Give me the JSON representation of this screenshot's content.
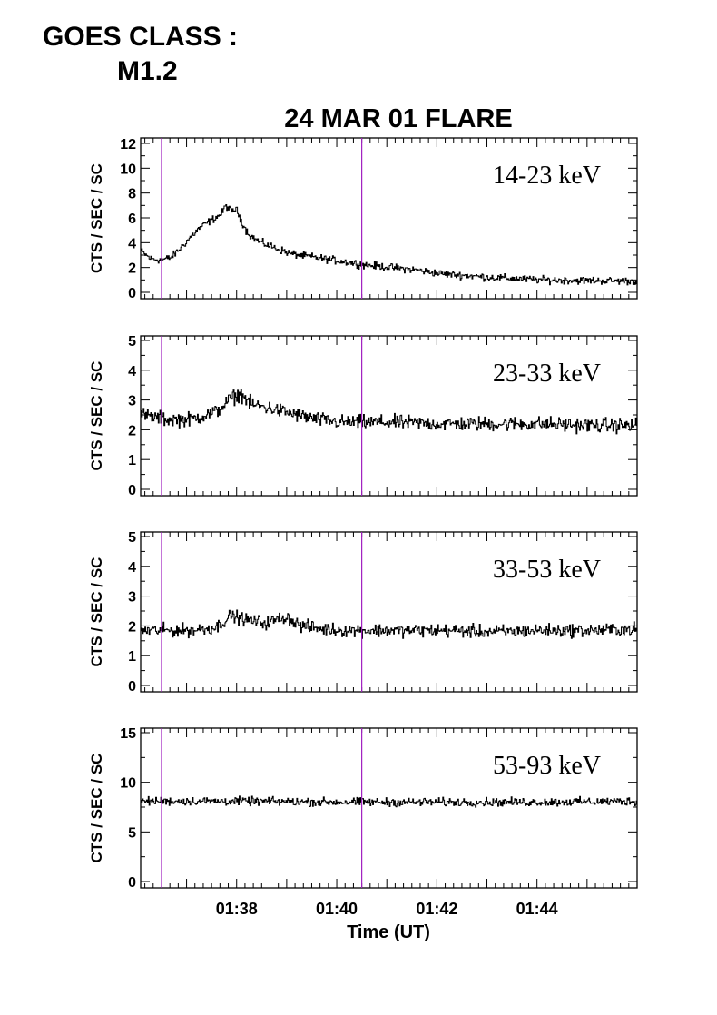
{
  "header": {
    "goes_label": "GOES CLASS :",
    "goes_value": "M1.2"
  },
  "chart_data": {
    "type": "line",
    "title": "24 MAR 01 FLARE",
    "xlabel": "Time (UT)",
    "x_ticks": [
      "01:38",
      "01:40",
      "01:42",
      "01:44"
    ],
    "x_range": [
      "01:36:05",
      "01:46:00"
    ],
    "vertical_markers": [
      "01:36:30",
      "01:40:30"
    ],
    "marker_color": "#a020c0",
    "line_color": "#000000",
    "panels": [
      {
        "band": "14-23 keV",
        "ylabel": "CTS / SEC / SC",
        "ylim": [
          0,
          12
        ],
        "y_ticks": [
          "0",
          "2",
          "4",
          "6",
          "8",
          "10",
          "12"
        ],
        "series": [
          {
            "x_min": [
              0.0,
              0.2,
              0.4,
              0.6,
              0.8,
              1.0,
              1.2,
              1.4,
              1.6,
              1.7,
              1.8,
              1.9,
              2.0,
              2.1,
              2.2,
              2.4,
              2.6,
              2.8,
              3.0,
              3.5,
              4.0,
              4.5,
              5.0,
              5.5,
              6.0,
              7.0,
              8.0,
              9.0,
              10.0
            ],
            "y": [
              3.3,
              2.7,
              2.6,
              2.8,
              3.6,
              4.5,
              5.3,
              5.8,
              6.3,
              7.0,
              6.5,
              6.7,
              5.8,
              5.0,
              4.5,
              4.0,
              3.7,
              3.4,
              3.1,
              2.8,
              2.5,
              2.2,
              2.0,
              1.8,
              1.5,
              1.2,
              1.0,
              0.95,
              0.9
            ],
            "noise": 0.25
          }
        ]
      },
      {
        "band": "23-33 keV",
        "ylabel": "CTS / SEC / SC",
        "ylim": [
          0,
          5
        ],
        "y_ticks": [
          "0",
          "1",
          "2",
          "3",
          "4",
          "5"
        ],
        "series": [
          {
            "x_min": [
              0.0,
              0.5,
              1.0,
              1.5,
              1.8,
              2.0,
              2.2,
              2.5,
              3.0,
              3.5,
              4.0,
              5.0,
              6.0,
              7.0,
              8.0,
              9.0,
              10.0
            ],
            "y": [
              2.5,
              2.35,
              2.35,
              2.6,
              3.05,
              3.2,
              2.85,
              2.75,
              2.55,
              2.35,
              2.25,
              2.25,
              2.2,
              2.2,
              2.2,
              2.15,
              2.15
            ],
            "noise": 0.2
          }
        ]
      },
      {
        "band": "33-53 keV",
        "ylabel": "CTS / SEC / SC",
        "ylim": [
          0,
          5
        ],
        "y_ticks": [
          "0",
          "1",
          "2",
          "3",
          "4",
          "5"
        ],
        "series": [
          {
            "x_min": [
              0.0,
              1.0,
              1.5,
              1.8,
              2.1,
              2.5,
              2.9,
              3.2,
              3.6,
              4.0,
              5.0,
              6.0,
              7.0,
              8.0,
              9.0,
              10.0
            ],
            "y": [
              1.85,
              1.85,
              1.95,
              2.35,
              2.2,
              2.1,
              2.3,
              2.0,
              1.9,
              1.85,
              1.85,
              1.85,
              1.8,
              1.85,
              1.85,
              1.9
            ],
            "noise": 0.18
          }
        ]
      },
      {
        "band": "53-93 keV",
        "ylabel": "CTS / SEC / SC",
        "ylim": [
          0,
          15
        ],
        "y_ticks": [
          "0",
          "5",
          "10",
          "15"
        ],
        "series": [
          {
            "x_min": [
              0.0,
              2.0,
              4.0,
              6.0,
              8.0,
              10.0
            ],
            "y": [
              8.1,
              8.1,
              8.0,
              8.0,
              8.0,
              8.1
            ],
            "noise": 0.35
          }
        ]
      }
    ]
  }
}
